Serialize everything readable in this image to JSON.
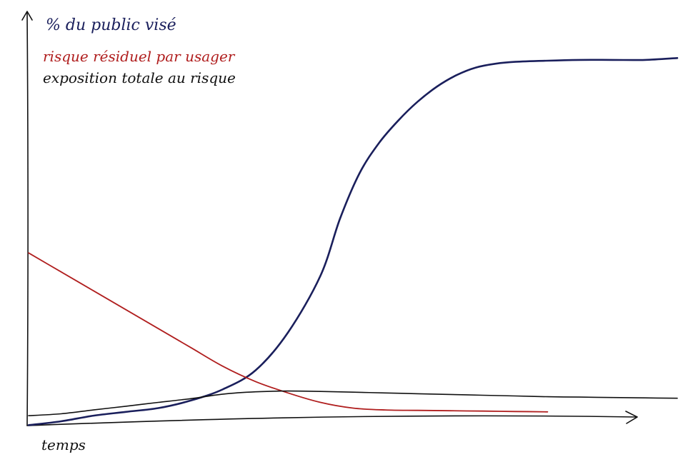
{
  "chart_data": {
    "type": "line",
    "title": "",
    "xlabel": "temps",
    "ylabel": "",
    "grid": false,
    "legend_position": "top-left",
    "xlim": [
      0,
      100
    ],
    "ylim": [
      0,
      100
    ],
    "series": [
      {
        "name": "% du public visé",
        "color": "#1a1f5c",
        "x": [
          0,
          5,
          10,
          15,
          20,
          25,
          30,
          35,
          40,
          45,
          48,
          51,
          54,
          57,
          60,
          63,
          66,
          69,
          72,
          75,
          80,
          85,
          90,
          95,
          100
        ],
        "y": [
          0.5,
          1.5,
          3,
          4,
          5,
          7,
          10,
          15,
          25,
          40,
          55,
          67,
          75,
          81,
          86,
          90,
          93,
          95,
          96,
          96.5,
          96.8,
          97,
          97,
          97,
          97.5
        ]
      },
      {
        "name": "risque résiduel par usager",
        "color": "#b01e1e",
        "x": [
          0,
          5,
          10,
          15,
          20,
          25,
          30,
          35,
          40,
          45,
          50,
          55,
          60,
          65,
          70,
          75,
          80
        ],
        "y": [
          46,
          41,
          36,
          31,
          26,
          21,
          16,
          12,
          9,
          6.5,
          5,
          4.5,
          4.4,
          4.3,
          4.2,
          4.1,
          4
        ]
      },
      {
        "name": "exposition totale au risque",
        "color": "#111111",
        "x": [
          0,
          5,
          10,
          15,
          20,
          25,
          30,
          35,
          40,
          45,
          50,
          55,
          60,
          65,
          70,
          75,
          80,
          85,
          90,
          95,
          100
        ],
        "y": [
          3,
          3.5,
          4.5,
          5.5,
          6.5,
          7.5,
          8.7,
          9.3,
          9.5,
          9.4,
          9.2,
          9,
          8.8,
          8.6,
          8.4,
          8.2,
          8,
          7.9,
          7.8,
          7.7,
          7.6
        ]
      }
    ]
  }
}
